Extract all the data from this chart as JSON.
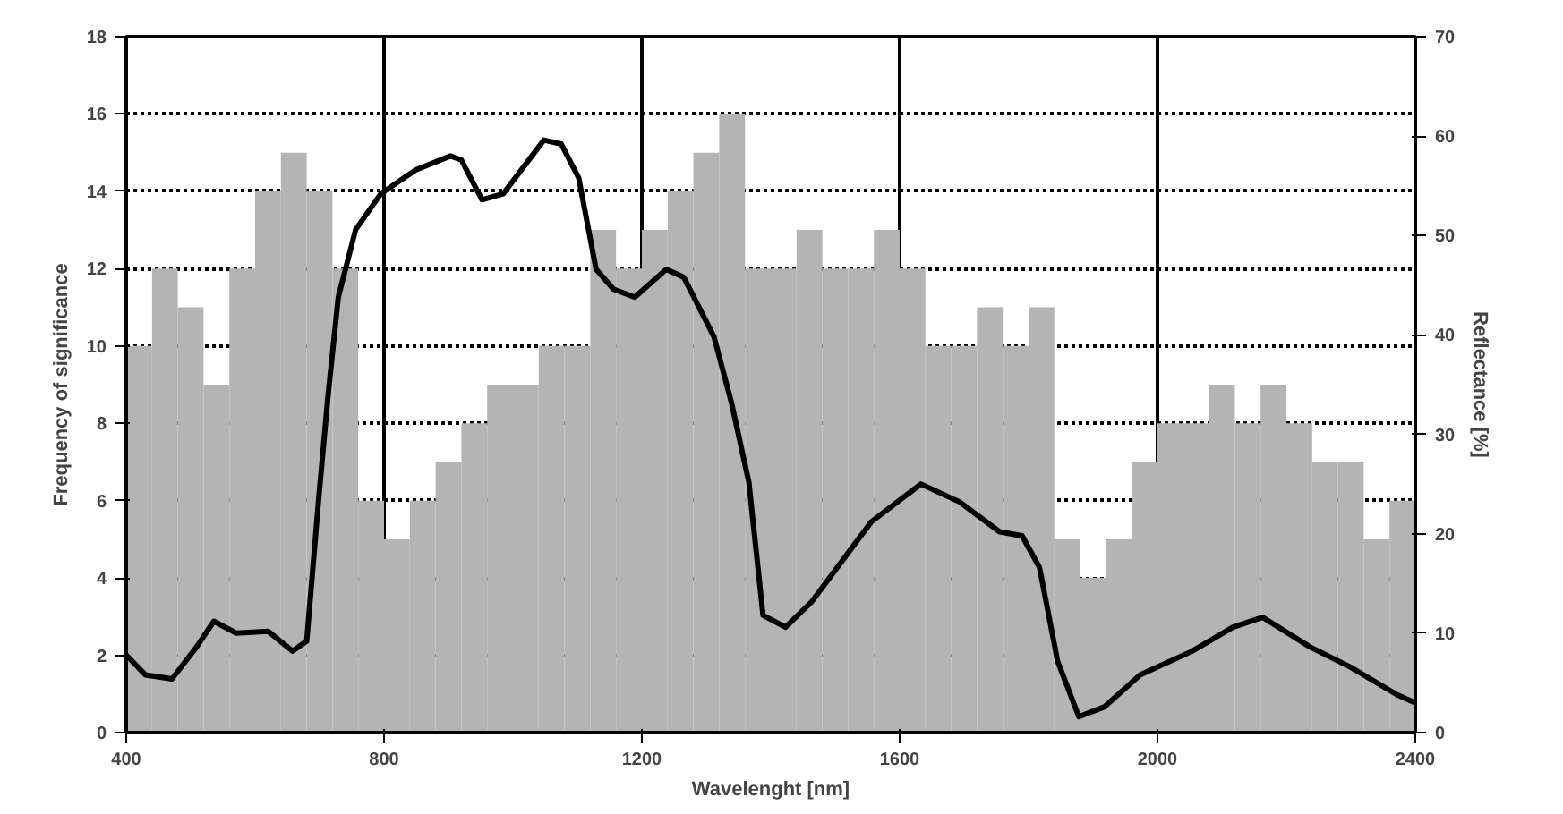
{
  "chart_data": {
    "type": "histogram",
    "xlabel": "Wavelenght [nm]",
    "ylabel": "Frequency of significance",
    "y2label": "Reflectance [%]",
    "bins": [
      400,
      440,
      480,
      520,
      560,
      600,
      640,
      680,
      720,
      760,
      800,
      840,
      880,
      920,
      960,
      1000,
      1040,
      1080,
      1120,
      1160,
      1200,
      1240,
      1280,
      1320,
      1360,
      1400,
      1440,
      1480,
      1520,
      1560,
      1600,
      1640,
      1680,
      1720,
      1760,
      1800,
      1840,
      1880,
      1920,
      1960,
      2000,
      2040,
      2080,
      2120,
      2160,
      2200,
      2240,
      2280,
      2320,
      2360,
      2400
    ],
    "values": [
      10,
      12,
      11,
      9,
      12,
      14,
      15,
      14,
      12,
      6,
      5,
      6,
      7,
      8,
      9,
      9,
      10,
      10,
      13,
      12,
      13,
      14,
      15,
      16,
      12,
      12,
      13,
      12,
      12,
      13,
      12,
      10,
      10,
      11,
      10,
      11,
      5,
      4,
      5,
      7,
      8,
      8,
      9,
      8,
      9,
      8,
      7,
      7,
      5,
      6
    ],
    "color": "#b4b4b4",
    "series": [
      {
        "type": "line",
        "axis": "y2",
        "color": "#000000",
        "x": [
          400,
          430,
          471,
          509,
          536,
          571,
          620,
          658,
          680,
          699,
          713,
          729,
          756,
          795,
          849,
          903,
          920,
          952,
          985,
          1048,
          1075,
          1102,
          1129,
          1156,
          1189,
          1238,
          1265,
          1312,
          1339,
          1366,
          1388,
          1423,
          1464,
          1556,
          1633,
          1693,
          1755,
          1790,
          1817,
          1845,
          1878,
          1918,
          1973,
          2054,
          2117,
          2163,
          2237,
          2299,
          2372,
          2400
        ],
        "values": [
          7.8,
          5.8,
          5.4,
          8.6,
          11.2,
          10,
          10.2,
          8.2,
          9.2,
          23.8,
          33.8,
          43.8,
          50.6,
          54.2,
          56.6,
          58,
          57.6,
          53.6,
          54.2,
          59.6,
          59.2,
          55.8,
          46.6,
          44.6,
          43.8,
          46.6,
          45.8,
          39.8,
          33.2,
          25.2,
          11.8,
          10.6,
          13.2,
          21.2,
          25,
          23.2,
          20.2,
          19.8,
          16.6,
          7.2,
          1.6,
          2.6,
          5.8,
          8.2,
          10.6,
          11.6,
          8.6,
          6.6,
          3.8,
          3
        ]
      }
    ],
    "xlim": [
      400,
      2400
    ],
    "xticks": [
      400,
      800,
      1200,
      1600,
      2000,
      2400
    ],
    "ylim": [
      0,
      18
    ],
    "yticks": [
      0,
      2,
      4,
      6,
      8,
      10,
      12,
      14,
      16,
      18
    ],
    "y2lim": [
      0,
      70
    ],
    "y2ticks": [
      0,
      10,
      20,
      30,
      40,
      50,
      60,
      70
    ],
    "grid": true,
    "line_style": "solid",
    "marker": "none"
  }
}
